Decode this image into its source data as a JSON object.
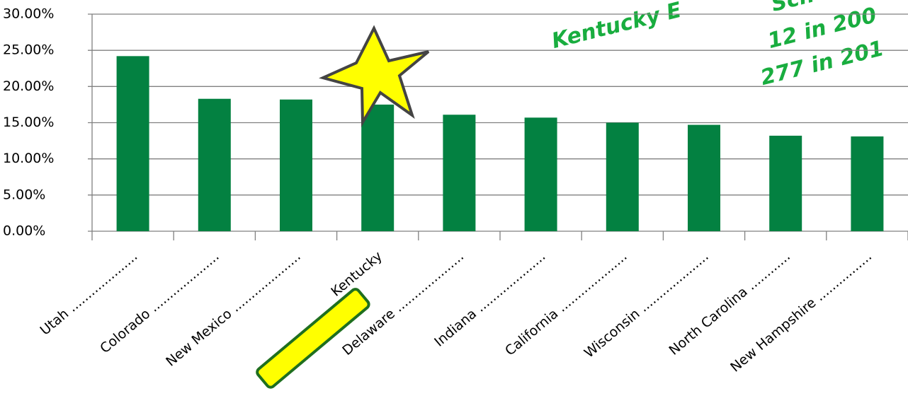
{
  "chart_data": {
    "type": "bar",
    "categories": [
      "Utah ....................",
      "Colorado ....................",
      "New Mexico ....................",
      "Kentucky",
      "Delaware ....................",
      "Indiana ....................",
      "California ....................",
      "Wisconsin ....................",
      "North Carolina ............",
      "New Hampshire ................"
    ],
    "values": [
      24.2,
      18.3,
      18.2,
      17.5,
      16.1,
      15.7,
      15.0,
      14.7,
      13.2,
      13.1
    ],
    "color": "#038141",
    "ylim": [
      0,
      30
    ],
    "yticks": [
      {
        "value": 0,
        "label": "0.00%"
      },
      {
        "value": 5,
        "label": "5.00%"
      },
      {
        "value": 10,
        "label": "10.00%"
      },
      {
        "value": 15,
        "label": "15.00%"
      },
      {
        "value": 20,
        "label": "20.00%"
      },
      {
        "value": 25,
        "label": "25.00%"
      },
      {
        "value": 30,
        "label": "30.00%"
      }
    ],
    "grid": true,
    "annotations": [
      "Kentucky E",
      "Sch",
      "12 in 200",
      "277 in 201"
    ]
  }
}
